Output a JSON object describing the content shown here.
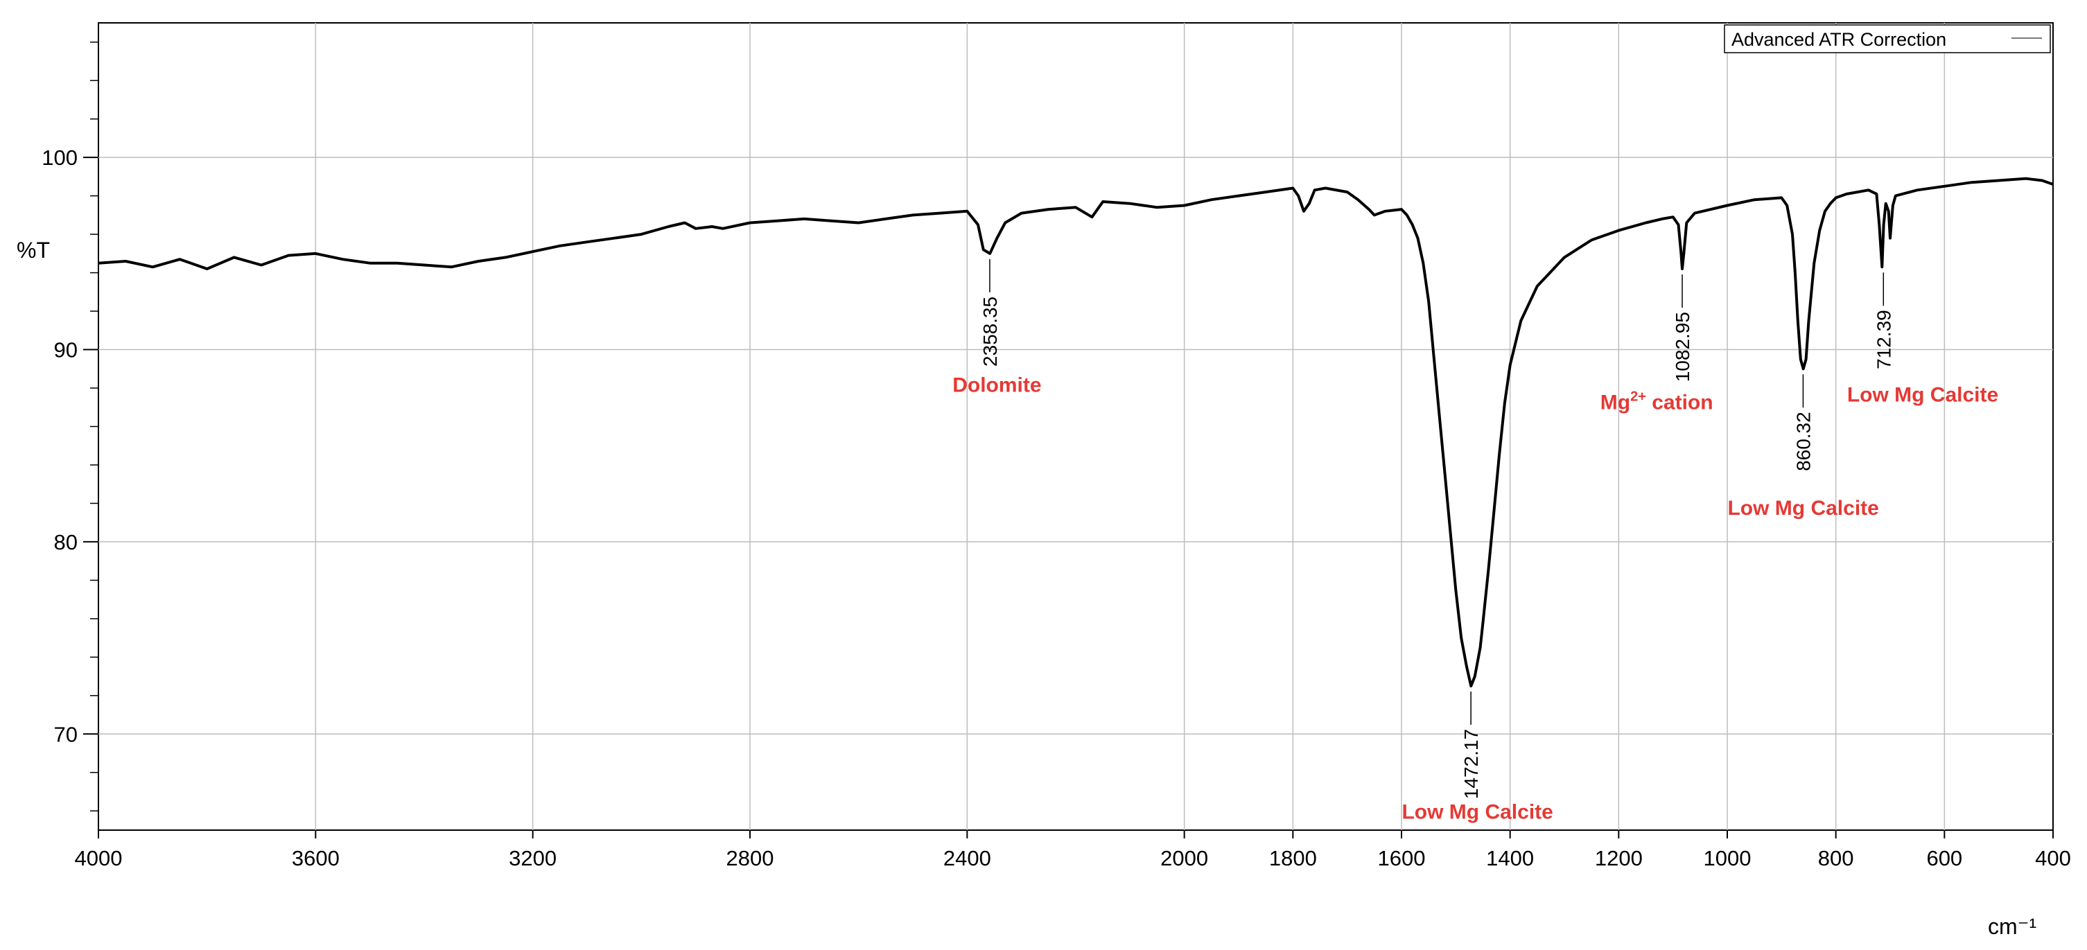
{
  "chart_data": {
    "type": "line",
    "title": "",
    "xlabel": "cm⁻¹",
    "ylabel": "%T",
    "xlim": [
      4000,
      400
    ],
    "x_reversed": true,
    "ylim": [
      65,
      107
    ],
    "grid": true,
    "legend": {
      "position": "top-right",
      "entries": [
        "Advanced ATR Correction"
      ]
    },
    "x_ticks": [
      4000,
      3600,
      3200,
      2800,
      2400,
      2000,
      1800,
      1600,
      1400,
      1200,
      1000,
      800,
      600,
      400
    ],
    "x_tick_labels": [
      "4000",
      "3600",
      "3200",
      "2800",
      "2400",
      "2000",
      "1800",
      "1600",
      "1400",
      "1200",
      "1000",
      "800",
      "600",
      "400"
    ],
    "y_ticks": [
      70,
      80,
      90,
      100
    ],
    "y_tick_labels": [
      "70",
      "80",
      "90",
      "100"
    ],
    "series": [
      {
        "name": "Advanced ATR Correction",
        "color": "#000000",
        "x": [
          4000,
          3950,
          3900,
          3850,
          3800,
          3750,
          3700,
          3650,
          3600,
          3550,
          3500,
          3450,
          3400,
          3350,
          3300,
          3250,
          3200,
          3150,
          3100,
          3050,
          3000,
          2950,
          2920,
          2900,
          2870,
          2850,
          2800,
          2750,
          2700,
          2650,
          2600,
          2550,
          2500,
          2450,
          2400,
          2380,
          2370,
          2358,
          2345,
          2330,
          2300,
          2250,
          2200,
          2170,
          2150,
          2100,
          2050,
          2000,
          1950,
          1900,
          1850,
          1800,
          1790,
          1780,
          1770,
          1760,
          1740,
          1700,
          1680,
          1660,
          1650,
          1630,
          1600,
          1590,
          1580,
          1570,
          1560,
          1550,
          1540,
          1530,
          1520,
          1510,
          1500,
          1490,
          1480,
          1472,
          1465,
          1455,
          1450,
          1440,
          1430,
          1420,
          1410,
          1400,
          1380,
          1350,
          1300,
          1250,
          1200,
          1150,
          1120,
          1100,
          1090,
          1085,
          1083,
          1080,
          1075,
          1060,
          1000,
          950,
          900,
          890,
          880,
          875,
          870,
          865,
          860,
          855,
          850,
          840,
          830,
          820,
          810,
          800,
          780,
          760,
          740,
          725,
          720,
          715,
          712,
          708,
          703,
          700,
          695,
          690,
          650,
          600,
          550,
          500,
          450,
          420,
          400
        ],
        "y": [
          94.5,
          94.6,
          94.3,
          94.7,
          94.2,
          94.8,
          94.4,
          94.9,
          95.0,
          94.7,
          94.5,
          94.5,
          94.4,
          94.3,
          94.6,
          94.8,
          95.1,
          95.4,
          95.6,
          95.8,
          96.0,
          96.4,
          96.6,
          96.3,
          96.4,
          96.3,
          96.6,
          96.7,
          96.8,
          96.7,
          96.6,
          96.8,
          97.0,
          97.1,
          97.2,
          96.5,
          95.2,
          95.0,
          95.8,
          96.6,
          97.1,
          97.3,
          97.4,
          96.9,
          97.7,
          97.6,
          97.4,
          97.5,
          97.8,
          98.0,
          98.2,
          98.4,
          98.0,
          97.2,
          97.6,
          98.3,
          98.4,
          98.2,
          97.8,
          97.3,
          97.0,
          97.2,
          97.3,
          97.0,
          96.5,
          95.8,
          94.5,
          92.5,
          89.5,
          86.5,
          83.5,
          80.5,
          77.5,
          75.0,
          73.5,
          72.5,
          73.0,
          74.5,
          75.8,
          78.5,
          81.5,
          84.5,
          87.2,
          89.2,
          91.5,
          93.3,
          94.8,
          95.7,
          96.2,
          96.6,
          96.8,
          96.9,
          96.5,
          95.0,
          94.2,
          95.0,
          96.6,
          97.1,
          97.5,
          97.8,
          97.9,
          97.5,
          96.0,
          94.0,
          91.5,
          89.5,
          89.0,
          89.5,
          91.5,
          94.5,
          96.2,
          97.2,
          97.6,
          97.9,
          98.1,
          98.2,
          98.3,
          98.1,
          96.5,
          94.3,
          96.5,
          97.6,
          97.2,
          95.8,
          97.5,
          98.0,
          98.3,
          98.5,
          98.7,
          98.8,
          98.9,
          98.8,
          98.6
        ]
      }
    ],
    "peak_labels": [
      {
        "x": 2358.35,
        "y": 95.0,
        "text": "2358.35",
        "direction": "down"
      },
      {
        "x": 1472.17,
        "y": 72.5,
        "text": "1472.17",
        "direction": "down"
      },
      {
        "x": 1082.95,
        "y": 94.2,
        "text": "1082.95",
        "direction": "down"
      },
      {
        "x": 860.32,
        "y": 89.0,
        "text": "860.32",
        "direction": "down"
      },
      {
        "x": 712.39,
        "y": 94.3,
        "text": "712.39",
        "direction": "down"
      }
    ],
    "annotations": [
      {
        "text": "Dolomite",
        "x": 2345,
        "y": 87.8,
        "color": "#e53935"
      },
      {
        "text_main": "Mg",
        "superscript": "2+",
        "text_after": " cation",
        "x": 1130,
        "y": 86.9,
        "color": "#e53935"
      },
      {
        "text": "Low Mg Calcite",
        "x": 860,
        "y": 81.4,
        "color": "#e53935"
      },
      {
        "text": "Low Mg Calcite",
        "x": 640,
        "y": 87.3,
        "color": "#e53935"
      },
      {
        "text": "Low Mg Calcite",
        "x": 1460,
        "y": 65.6,
        "color": "#e53935"
      }
    ]
  }
}
